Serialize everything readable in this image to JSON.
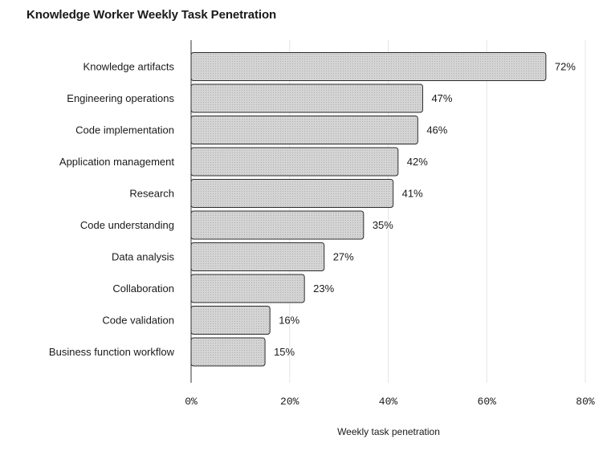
{
  "chart_data": {
    "type": "bar",
    "orientation": "horizontal",
    "title": "Knowledge Worker Weekly Task Penetration",
    "xlabel": "Weekly task penetration",
    "ylabel": "",
    "categories": [
      "Knowledge artifacts",
      "Engineering operations",
      "Code implementation",
      "Application management",
      "Research",
      "Code understanding",
      "Data analysis",
      "Collaboration",
      "Code validation",
      "Business function workflow"
    ],
    "values": [
      72,
      47,
      46,
      42,
      41,
      35,
      27,
      23,
      16,
      15
    ],
    "value_labels": [
      "72%",
      "47%",
      "46%",
      "42%",
      "41%",
      "35%",
      "27%",
      "23%",
      "16%",
      "15%"
    ],
    "xlim": [
      0,
      80
    ],
    "xticks": [
      0,
      20,
      40,
      60,
      80
    ],
    "xtick_labels": [
      "0%",
      "20%",
      "40%",
      "60%",
      "80%"
    ],
    "grid": "vertical",
    "legend": "none",
    "bar_fill": "#d4d4d4",
    "bar_pattern_dot": "#a8a8a8",
    "bar_stroke": "#2b2b2b",
    "grid_color": "#e6e6e6",
    "axis_color": "#333333"
  }
}
